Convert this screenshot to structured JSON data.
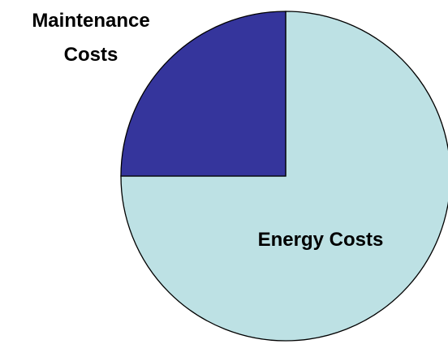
{
  "chart_data": {
    "type": "pie",
    "title": "",
    "start_angle": "12 o'clock",
    "direction": "clockwise",
    "slices": [
      {
        "label": "Energy Costs",
        "label_lines": [
          "Energy Costs"
        ],
        "value": 75,
        "color": "#bde1e4",
        "label_placement": "inside"
      },
      {
        "label": "Maintenance Costs",
        "label_lines": [
          "Maintenance",
          "Costs"
        ],
        "value": 25,
        "color": "#35359c",
        "label_placement": "outside-top-left"
      }
    ],
    "legend": "none"
  }
}
